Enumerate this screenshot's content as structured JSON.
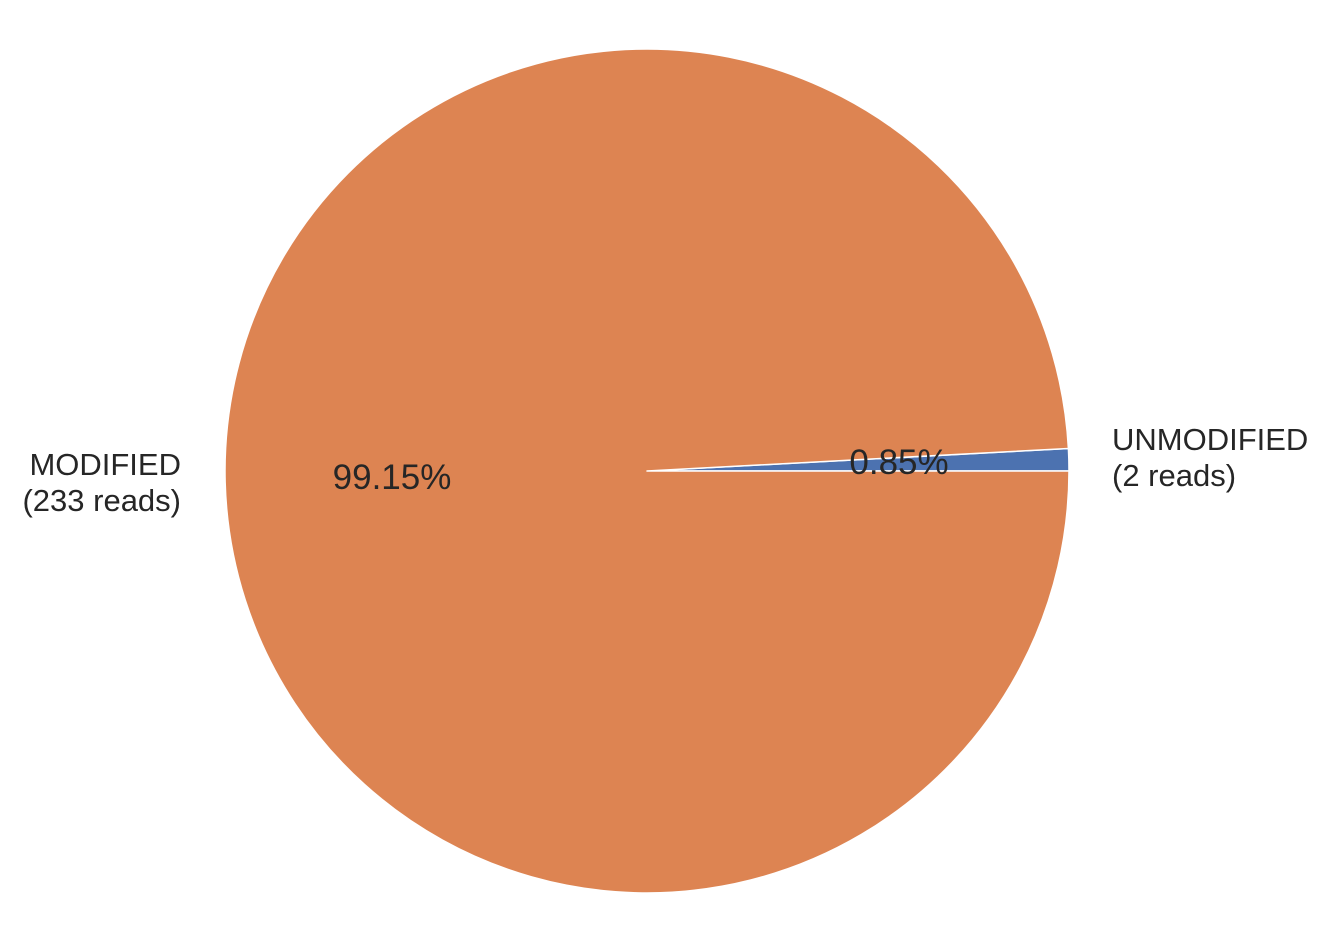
{
  "chart_data": {
    "type": "pie",
    "slices": [
      {
        "name": "UNMODIFIED",
        "label_lines": [
          "UNMODIFIED",
          "(2 reads)"
        ],
        "reads": 2,
        "percent": 0.85,
        "percent_label": "0.85%",
        "color": "#4c72b0"
      },
      {
        "name": "MODIFIED",
        "label_lines": [
          "MODIFIED",
          "(233 reads)"
        ],
        "reads": 233,
        "percent": 99.15,
        "percent_label": "99.15%",
        "color": "#dd8452"
      }
    ],
    "start_angle_deg": 0,
    "direction": "counterclockwise",
    "wedge_edge_color": "#ffffff"
  }
}
